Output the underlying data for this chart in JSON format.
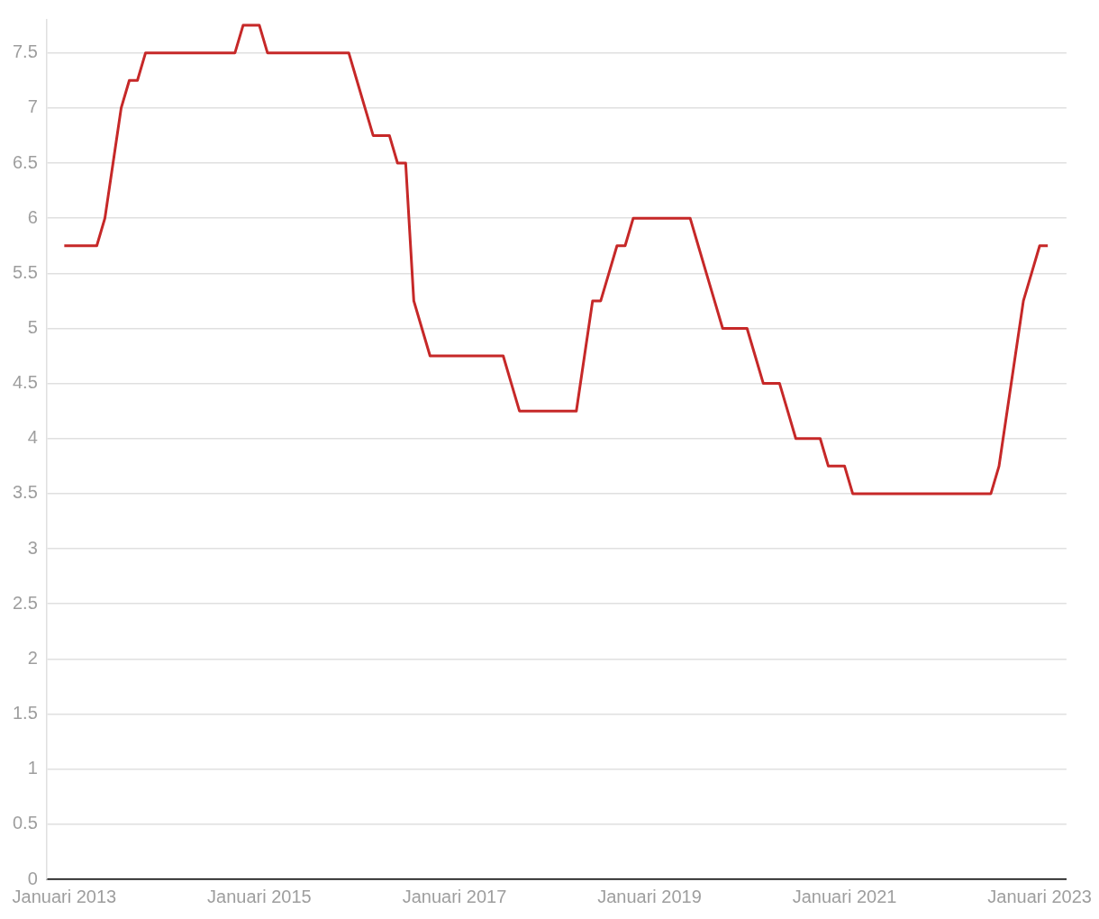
{
  "chart_data": {
    "type": "line",
    "grid": "y",
    "xlim": [
      "2012-10-26",
      "2023-04-10"
    ],
    "xticks": [
      {
        "value": "2013-01",
        "label": "Januari 2013"
      },
      {
        "value": "2015-01",
        "label": "Januari 2015"
      },
      {
        "value": "2017-01",
        "label": "Januari 2017"
      },
      {
        "value": "2019-01",
        "label": "Januari 2019"
      },
      {
        "value": "2021-01",
        "label": "Januari 2021"
      },
      {
        "value": "2023-01",
        "label": "Januari 2023"
      }
    ],
    "ylim": [
      0,
      7.8
    ],
    "yticks": [
      0,
      0.5,
      1,
      1.5,
      2,
      2.5,
      3,
      3.5,
      4,
      4.5,
      5,
      5.5,
      6,
      6.5,
      7,
      7.5
    ],
    "x": [
      "2013-01",
      "2013-02",
      "2013-03",
      "2013-04",
      "2013-05",
      "2013-06",
      "2013-07",
      "2013-08",
      "2013-09",
      "2013-10",
      "2013-11",
      "2013-12",
      "2014-01",
      "2014-02",
      "2014-03",
      "2014-04",
      "2014-05",
      "2014-06",
      "2014-07",
      "2014-08",
      "2014-09",
      "2014-10",
      "2014-11",
      "2014-12",
      "2015-01",
      "2015-02",
      "2015-03",
      "2015-04",
      "2015-05",
      "2015-06",
      "2015-07",
      "2015-08",
      "2015-09",
      "2015-10",
      "2015-11",
      "2015-12",
      "2016-01",
      "2016-02",
      "2016-03",
      "2016-04",
      "2016-05",
      "2016-06",
      "2016-07",
      "2016-08",
      "2016-09",
      "2016-10",
      "2016-11",
      "2016-12",
      "2017-01",
      "2017-02",
      "2017-03",
      "2017-04",
      "2017-05",
      "2017-06",
      "2017-07",
      "2017-08",
      "2017-09",
      "2017-10",
      "2017-11",
      "2017-12",
      "2018-01",
      "2018-02",
      "2018-03",
      "2018-04",
      "2018-05",
      "2018-06",
      "2018-07",
      "2018-08",
      "2018-09",
      "2018-10",
      "2018-11",
      "2018-12",
      "2019-01",
      "2019-02",
      "2019-03",
      "2019-04",
      "2019-05",
      "2019-06",
      "2019-07",
      "2019-08",
      "2019-09",
      "2019-10",
      "2019-11",
      "2019-12",
      "2020-01",
      "2020-02",
      "2020-03",
      "2020-04",
      "2020-05",
      "2020-06",
      "2020-07",
      "2020-08",
      "2020-09",
      "2020-10",
      "2020-11",
      "2020-12",
      "2021-01",
      "2021-02",
      "2021-03",
      "2021-04",
      "2021-05",
      "2021-06",
      "2021-07",
      "2021-08",
      "2021-09",
      "2021-10",
      "2021-11",
      "2021-12",
      "2022-01",
      "2022-02",
      "2022-03",
      "2022-04",
      "2022-05",
      "2022-06",
      "2022-07",
      "2022-08",
      "2022-09",
      "2022-10",
      "2022-11",
      "2022-12",
      "2023-01",
      "2023-02"
    ],
    "series": [
      {
        "color": "#c62828",
        "values": [
          5.75,
          5.75,
          5.75,
          5.75,
          5.75,
          6,
          6.5,
          7,
          7.25,
          7.25,
          7.5,
          7.5,
          7.5,
          7.5,
          7.5,
          7.5,
          7.5,
          7.5,
          7.5,
          7.5,
          7.5,
          7.5,
          7.75,
          7.75,
          7.75,
          7.5,
          7.5,
          7.5,
          7.5,
          7.5,
          7.5,
          7.5,
          7.5,
          7.5,
          7.5,
          7.5,
          7.25,
          7,
          6.75,
          6.75,
          6.75,
          6.5,
          6.5,
          5.25,
          5,
          4.75,
          4.75,
          4.75,
          4.75,
          4.75,
          4.75,
          4.75,
          4.75,
          4.75,
          4.75,
          4.5,
          4.25,
          4.25,
          4.25,
          4.25,
          4.25,
          4.25,
          4.25,
          4.25,
          4.75,
          5.25,
          5.25,
          5.5,
          5.75,
          5.75,
          6,
          6,
          6,
          6,
          6,
          6,
          6,
          6,
          5.75,
          5.5,
          5.25,
          5,
          5,
          5,
          5,
          4.75,
          4.5,
          4.5,
          4.5,
          4.25,
          4,
          4,
          4,
          4,
          3.75,
          3.75,
          3.75,
          3.5,
          3.5,
          3.5,
          3.5,
          3.5,
          3.5,
          3.5,
          3.5,
          3.5,
          3.5,
          3.5,
          3.5,
          3.5,
          3.5,
          3.5,
          3.5,
          3.5,
          3.5,
          3.75,
          4.25,
          4.75,
          5.25,
          5.5,
          5.75,
          5.75
        ]
      }
    ]
  }
}
